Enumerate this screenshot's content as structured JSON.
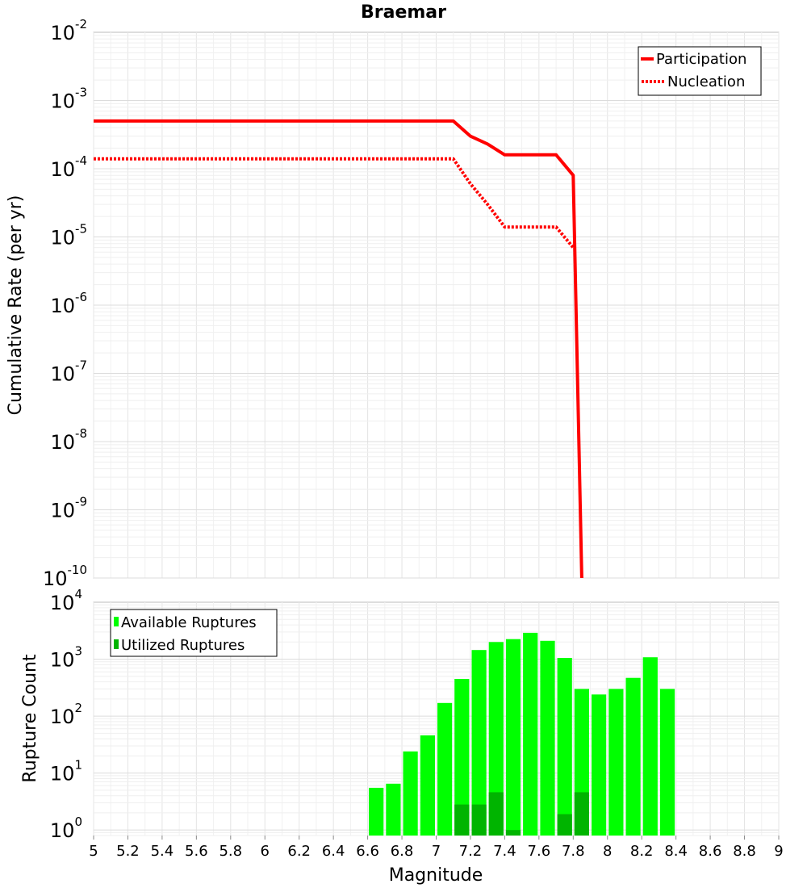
{
  "chart_data": [
    {
      "type": "line",
      "title": "Braemar",
      "xlabel": "",
      "ylabel": "Cumulative Rate (per yr)",
      "xlim": [
        5,
        9
      ],
      "ylim": [
        1e-10,
        0.01
      ],
      "yscale": "log",
      "y_ticks": [
        {
          "base": "10",
          "exp": "-10"
        },
        {
          "base": "10",
          "exp": "-9"
        },
        {
          "base": "10",
          "exp": "-8"
        },
        {
          "base": "10",
          "exp": "-7"
        },
        {
          "base": "10",
          "exp": "-6"
        },
        {
          "base": "10",
          "exp": "-5"
        },
        {
          "base": "10",
          "exp": "-4"
        },
        {
          "base": "10",
          "exp": "-3"
        },
        {
          "base": "10",
          "exp": "-2"
        }
      ],
      "grid": true,
      "legend_position": "top-right",
      "series": [
        {
          "name": "Participation",
          "color": "#ff0000",
          "style": "solid",
          "x": [
            5.0,
            7.1,
            7.2,
            7.3,
            7.4,
            7.5,
            7.6,
            7.7,
            7.8,
            7.85
          ],
          "y": [
            0.0005,
            0.0005,
            0.0003,
            0.00023,
            0.00016,
            0.00016,
            0.00016,
            0.00016,
            8e-05,
            1e-10
          ]
        },
        {
          "name": "Nucleation",
          "color": "#ff0000",
          "style": "dotted",
          "x": [
            5.0,
            7.1,
            7.2,
            7.3,
            7.4,
            7.5,
            7.6,
            7.7,
            7.8
          ],
          "y": [
            0.00014,
            0.00014,
            6e-05,
            3e-05,
            1.4e-05,
            1.4e-05,
            1.4e-05,
            1.4e-05,
            7e-06
          ]
        }
      ]
    },
    {
      "type": "bar",
      "xlabel": "Magnitude",
      "ylabel": "Rupture Count",
      "xlim": [
        5,
        9
      ],
      "ylim": [
        0.8,
        10000
      ],
      "yscale": "log",
      "x_ticks": [
        "5",
        "5.2",
        "5.4",
        "5.6",
        "5.8",
        "6",
        "6.2",
        "6.4",
        "6.6",
        "6.8",
        "7",
        "7.2",
        "7.4",
        "7.6",
        "7.8",
        "8",
        "8.2",
        "8.4",
        "8.6",
        "8.8",
        "9"
      ],
      "y_ticks": [
        {
          "base": "10",
          "exp": "0"
        },
        {
          "base": "10",
          "exp": "1"
        },
        {
          "base": "10",
          "exp": "2"
        },
        {
          "base": "10",
          "exp": "3"
        },
        {
          "base": "10",
          "exp": "4"
        }
      ],
      "grid": true,
      "legend_position": "top-left",
      "bin_width": 0.1,
      "x": [
        6.65,
        6.75,
        6.85,
        6.95,
        7.05,
        7.15,
        7.25,
        7.35,
        7.45,
        7.55,
        7.65,
        7.75,
        7.85,
        7.95,
        8.05,
        8.15,
        8.25,
        8.35
      ],
      "series": [
        {
          "name": "Available Ruptures",
          "color": "#00ff00",
          "values": [
            5.5,
            6.5,
            24,
            46,
            170,
            450,
            1450,
            2000,
            2250,
            2900,
            2100,
            1050,
            300,
            240,
            300,
            470,
            1080,
            300
          ]
        },
        {
          "name": "Utilized Ruptures",
          "color": "#00b400",
          "values": [
            0,
            0,
            0,
            0,
            0,
            2.8,
            2.8,
            4.6,
            1.0,
            0,
            0,
            1.9,
            4.6,
            0,
            0,
            0,
            0,
            0
          ]
        }
      ]
    }
  ]
}
